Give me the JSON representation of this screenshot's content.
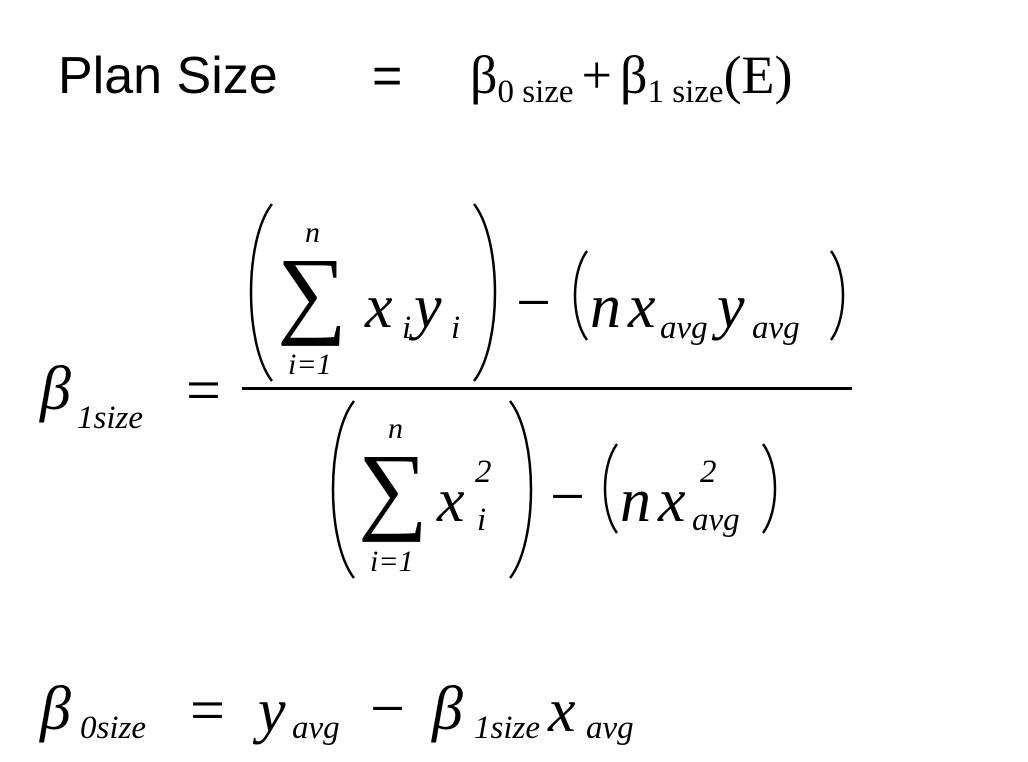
{
  "eq1": {
    "lhs": "Plan Size",
    "equals": "=",
    "beta": "β",
    "sub0": "0 size",
    "plus": "+",
    "sub1": "1 size",
    "arg": "(E)"
  },
  "eq2": {
    "beta": "β",
    "beta_sub": "1size",
    "equals": "=",
    "sum": "∑",
    "n": "n",
    "i_eq_1": "i=1",
    "x": "x",
    "y": "y",
    "i": "i",
    "minus": "−",
    "n_var": "n",
    "avg": "avg",
    "square": "2"
  },
  "eq3": {
    "beta": "β",
    "beta_sub0": "0size",
    "equals": "=",
    "y": "y",
    "avg": "avg",
    "minus": "−",
    "beta_sub1": "1size",
    "x": "x"
  }
}
